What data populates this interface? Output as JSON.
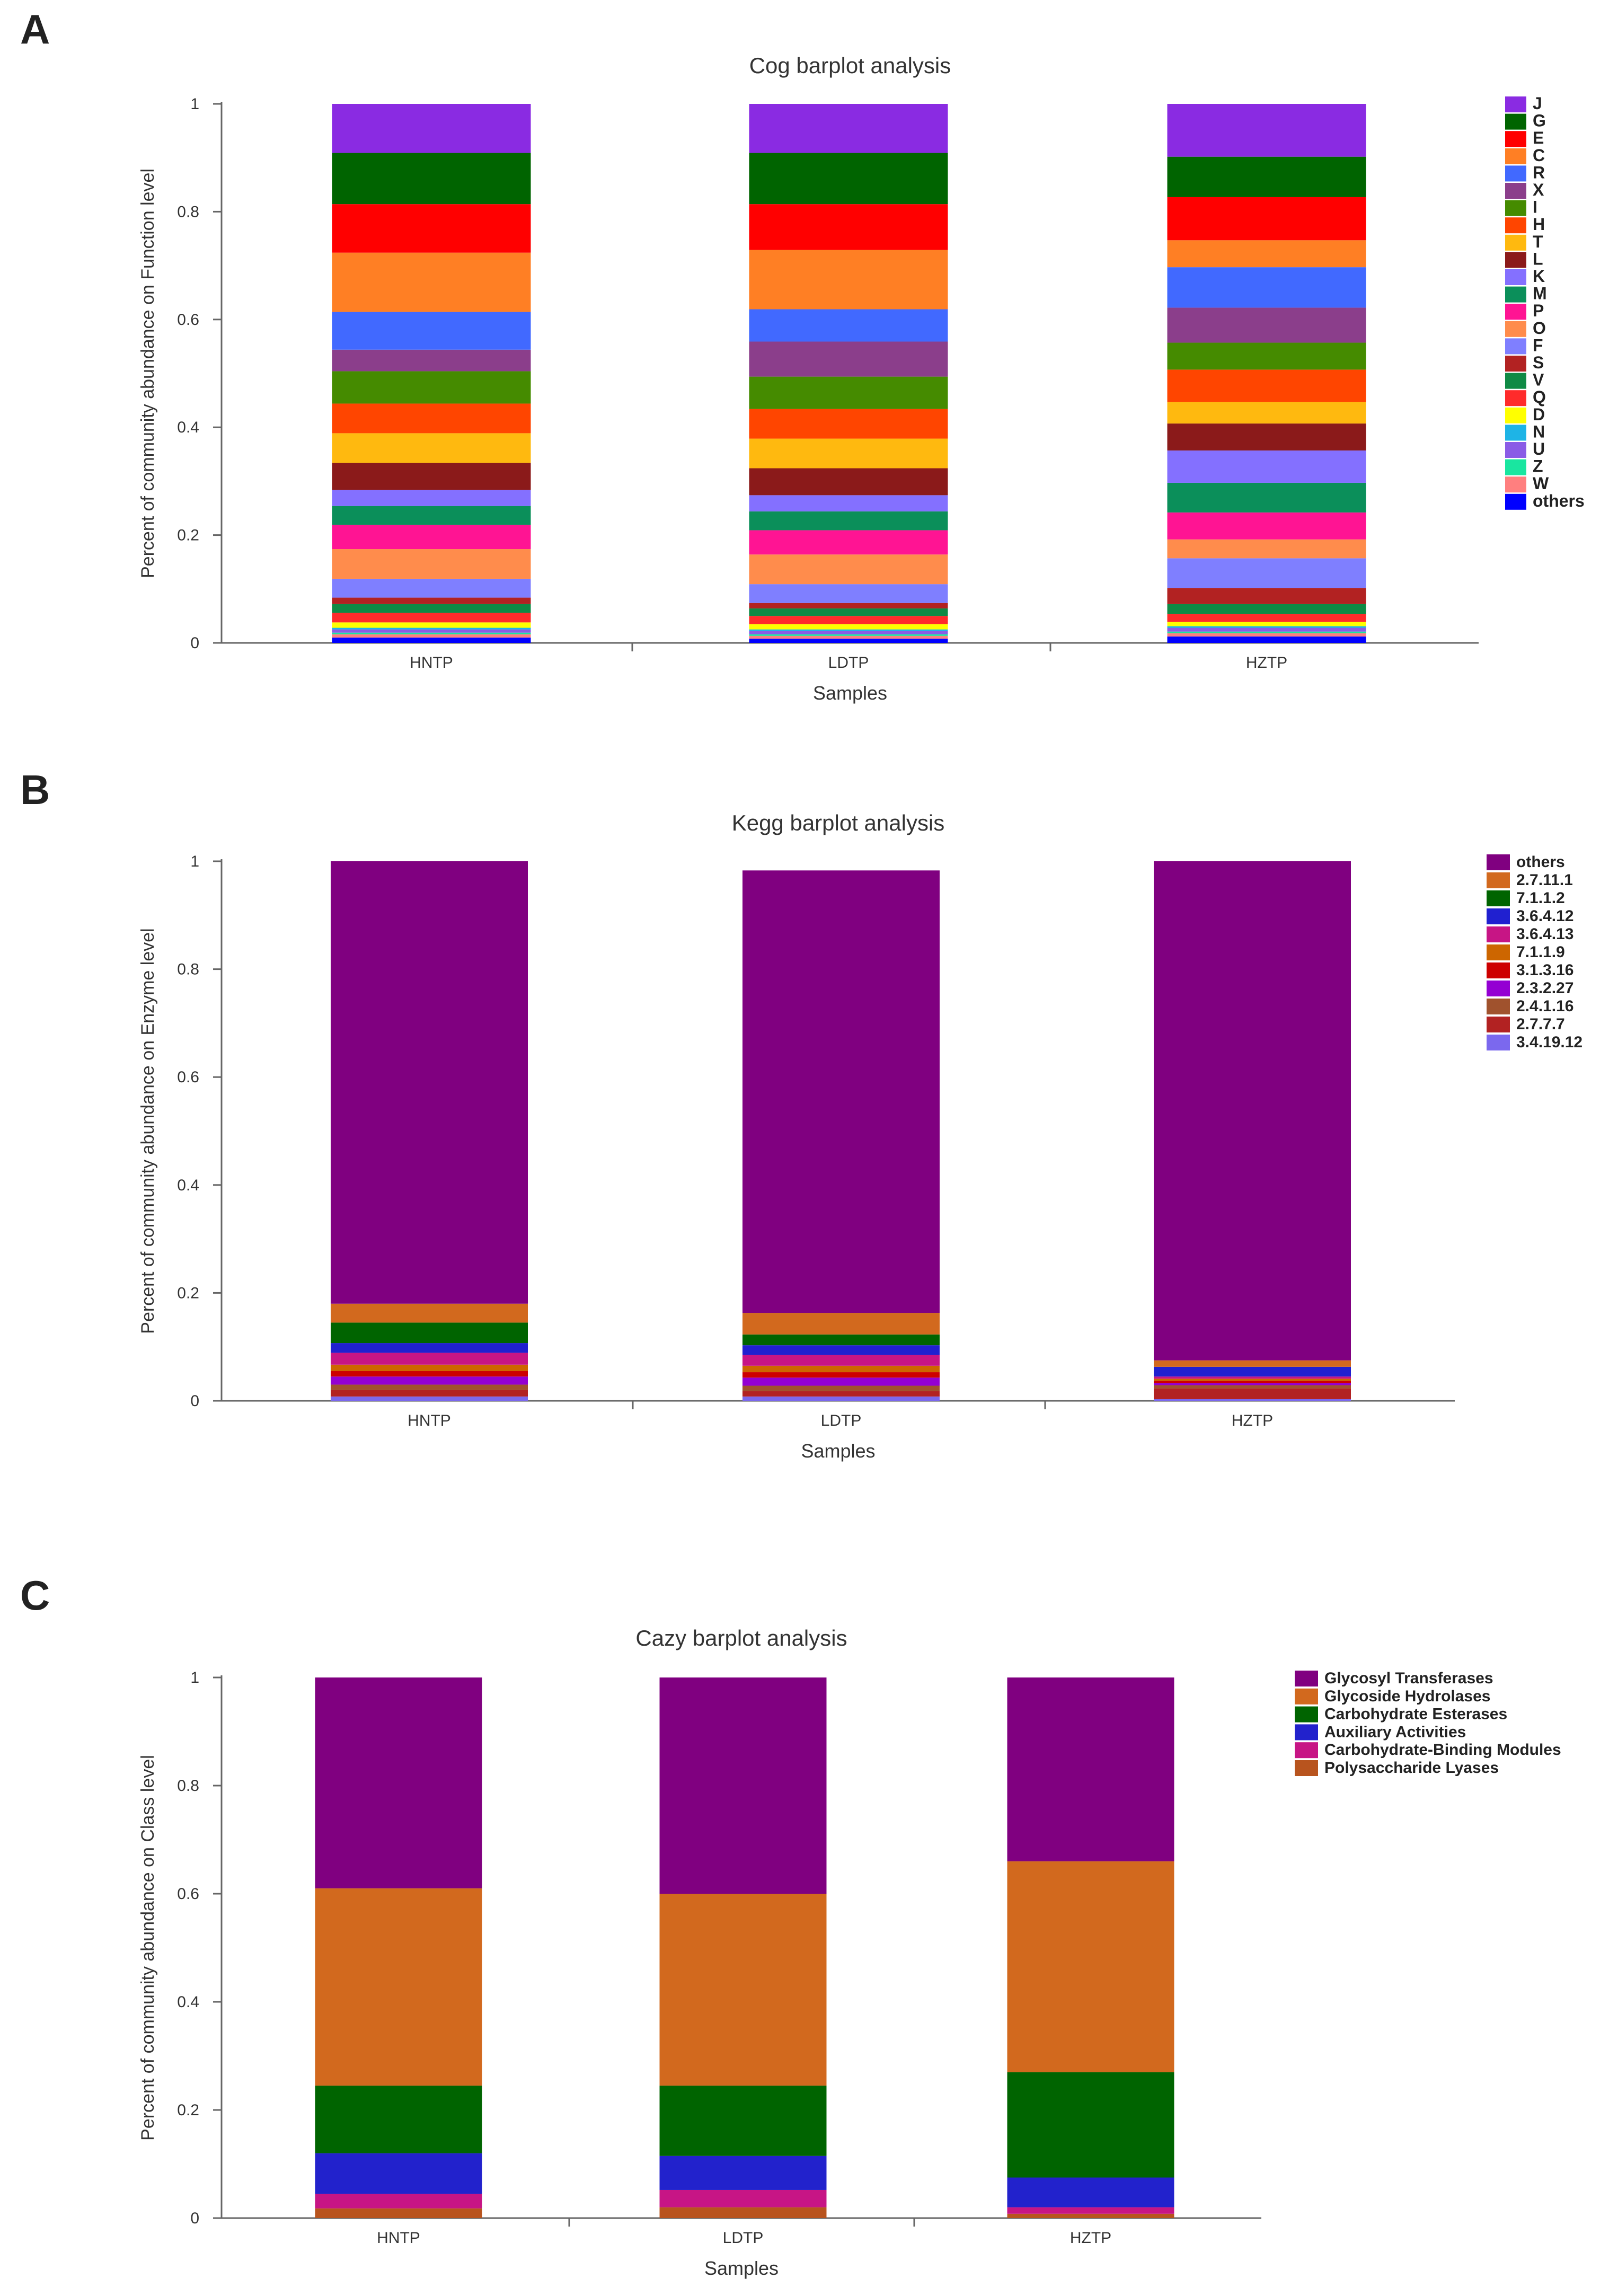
{
  "panels": [
    {
      "letter": "A"
    },
    {
      "letter": "B"
    },
    {
      "letter": "C"
    }
  ],
  "chart_data": [
    {
      "type": "bar",
      "stacked": true,
      "title": "Cog barplot analysis",
      "xlabel": "Samples",
      "ylabel": "Percent of community abundance on Function level",
      "ylim": [
        0,
        1
      ],
      "yticks": [
        "0",
        "0.2",
        "0.4",
        "0.6",
        "0.8",
        "1"
      ],
      "categories": [
        "HNTP",
        "LDTP",
        "HZTP"
      ],
      "legend_position": "right",
      "series": [
        {
          "name": "others",
          "color": "#0000FF",
          "values": [
            0.01,
            0.008,
            0.012
          ]
        },
        {
          "name": "W",
          "color": "#FF7F7F",
          "values": [
            0.006,
            0.005,
            0.006
          ]
        },
        {
          "name": "Z",
          "color": "#19E6A0",
          "values": [
            0.003,
            0.003,
            0.003
          ]
        },
        {
          "name": "U",
          "color": "#8A5CE6",
          "values": [
            0.006,
            0.006,
            0.007
          ]
        },
        {
          "name": "N",
          "color": "#1EB4E6",
          "values": [
            0.003,
            0.003,
            0.003
          ]
        },
        {
          "name": "D",
          "color": "#FFFF00",
          "values": [
            0.01,
            0.01,
            0.008
          ]
        },
        {
          "name": "Q",
          "color": "#FF2B2B",
          "values": [
            0.018,
            0.015,
            0.015
          ]
        },
        {
          "name": "V",
          "color": "#0F8A45",
          "values": [
            0.016,
            0.014,
            0.018
          ]
        },
        {
          "name": "S",
          "color": "#B22222",
          "values": [
            0.012,
            0.01,
            0.03
          ]
        },
        {
          "name": "F",
          "color": "#7F7FFF",
          "values": [
            0.035,
            0.035,
            0.055
          ]
        },
        {
          "name": "O",
          "color": "#FF8C4C",
          "values": [
            0.055,
            0.055,
            0.035
          ]
        },
        {
          "name": "P",
          "color": "#FF1493",
          "values": [
            0.045,
            0.045,
            0.05
          ]
        },
        {
          "name": "M",
          "color": "#0B8F5A",
          "values": [
            0.035,
            0.035,
            0.055
          ]
        },
        {
          "name": "K",
          "color": "#8470FF",
          "values": [
            0.03,
            0.03,
            0.06
          ]
        },
        {
          "name": "L",
          "color": "#8B1A1A",
          "values": [
            0.05,
            0.05,
            0.05
          ]
        },
        {
          "name": "T",
          "color": "#FFB90F",
          "values": [
            0.055,
            0.055,
            0.04
          ]
        },
        {
          "name": "H",
          "color": "#FF4500",
          "values": [
            0.055,
            0.055,
            0.06
          ]
        },
        {
          "name": "I",
          "color": "#458B00",
          "values": [
            0.06,
            0.06,
            0.05
          ]
        },
        {
          "name": "X",
          "color": "#8B3E8B",
          "values": [
            0.04,
            0.065,
            0.065
          ]
        },
        {
          "name": "R",
          "color": "#4169FF",
          "values": [
            0.07,
            0.06,
            0.075
          ]
        },
        {
          "name": "C",
          "color": "#FF7F24",
          "values": [
            0.11,
            0.11,
            0.05
          ]
        },
        {
          "name": "E",
          "color": "#FF0000",
          "values": [
            0.09,
            0.085,
            0.08
          ]
        },
        {
          "name": "G",
          "color": "#006400",
          "values": [
            0.095,
            0.095,
            0.075
          ]
        },
        {
          "name": "J",
          "color": "#8A2BE2",
          "values": [
            0.091,
            0.091,
            0.098
          ]
        }
      ]
    },
    {
      "type": "bar",
      "stacked": true,
      "title": "Kegg barplot analysis",
      "xlabel": "Samples",
      "ylabel": "Percent of community abundance on Enzyme level",
      "ylim": [
        0,
        1
      ],
      "yticks": [
        "0",
        "0.2",
        "0.4",
        "0.6",
        "0.8",
        "1"
      ],
      "categories": [
        "HNTP",
        "LDTP",
        "HZTP"
      ],
      "legend_position": "right",
      "series": [
        {
          "name": "3.4.19.12",
          "color": "#7B68EE",
          "values": [
            0.008,
            0.008,
            0.003
          ]
        },
        {
          "name": "2.7.7.7",
          "color": "#B22222",
          "values": [
            0.012,
            0.01,
            0.02
          ]
        },
        {
          "name": "2.4.1.16",
          "color": "#A0522D",
          "values": [
            0.01,
            0.01,
            0.006
          ]
        },
        {
          "name": "2.3.2.27",
          "color": "#9400D3",
          "values": [
            0.015,
            0.015,
            0.004
          ]
        },
        {
          "name": "3.1.3.16",
          "color": "#CD0000",
          "values": [
            0.01,
            0.01,
            0.004
          ]
        },
        {
          "name": "7.1.1.9",
          "color": "#CD6600",
          "values": [
            0.012,
            0.012,
            0.004
          ]
        },
        {
          "name": "3.6.4.13",
          "color": "#C71585",
          "values": [
            0.022,
            0.02,
            0.004
          ]
        },
        {
          "name": "3.6.4.12",
          "color": "#2020D0",
          "values": [
            0.018,
            0.018,
            0.018
          ]
        },
        {
          "name": "7.1.1.2",
          "color": "#006400",
          "values": [
            0.038,
            0.02,
            0.0
          ]
        },
        {
          "name": "2.7.11.1",
          "color": "#D2691E",
          "values": [
            0.035,
            0.04,
            0.012
          ]
        },
        {
          "name": "others",
          "color": "#800080",
          "values": [
            0.82,
            0.82,
            0.925
          ]
        }
      ]
    },
    {
      "type": "bar",
      "stacked": true,
      "title": "Cazy barplot analysis",
      "xlabel": "Samples",
      "ylabel": "Percent of community abundance on Class level",
      "ylim": [
        0,
        1
      ],
      "yticks": [
        "0",
        "0.2",
        "0.4",
        "0.6",
        "0.8",
        "1"
      ],
      "categories": [
        "HNTP",
        "LDTP",
        "HZTP"
      ],
      "legend_position": "right",
      "series": [
        {
          "name": "Polysaccharide Lyases",
          "color": "#B8541E",
          "values": [
            0.018,
            0.02,
            0.008
          ]
        },
        {
          "name": "Carbohydrate-Binding Modules",
          "color": "#C71585",
          "values": [
            0.027,
            0.032,
            0.012
          ]
        },
        {
          "name": "Auxiliary Activities",
          "color": "#2222CC",
          "values": [
            0.075,
            0.063,
            0.055
          ]
        },
        {
          "name": "Carbohydrate Esterases",
          "color": "#006400",
          "values": [
            0.125,
            0.13,
            0.195
          ]
        },
        {
          "name": "Glycoside Hydrolases",
          "color": "#D2691E",
          "values": [
            0.365,
            0.355,
            0.39
          ]
        },
        {
          "name": "Glycosyl Transferases",
          "color": "#800080",
          "values": [
            0.39,
            0.4,
            0.34
          ]
        }
      ]
    }
  ]
}
